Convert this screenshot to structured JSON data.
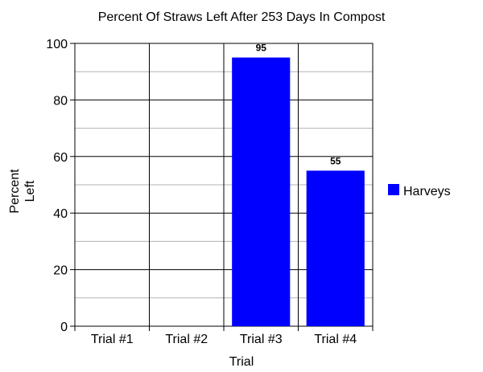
{
  "chart_data": {
    "type": "bar",
    "title": "Percent Of Straws Left After 253 Days In Compost",
    "xlabel": "Trial",
    "ylabel_lines": [
      "Percent",
      "Left"
    ],
    "categories": [
      "Trial #1",
      "Trial #2",
      "Trial #3",
      "Trial #4"
    ],
    "series": [
      {
        "name": "Harveys",
        "values": [
          null,
          null,
          95,
          55
        ],
        "color": "#0000ff"
      }
    ],
    "data_labels": [
      "",
      "",
      "95",
      "55"
    ],
    "ylim": [
      0,
      100
    ],
    "yticks": [
      0,
      20,
      40,
      60,
      80,
      100
    ],
    "grid": true,
    "legend_position": "right"
  }
}
